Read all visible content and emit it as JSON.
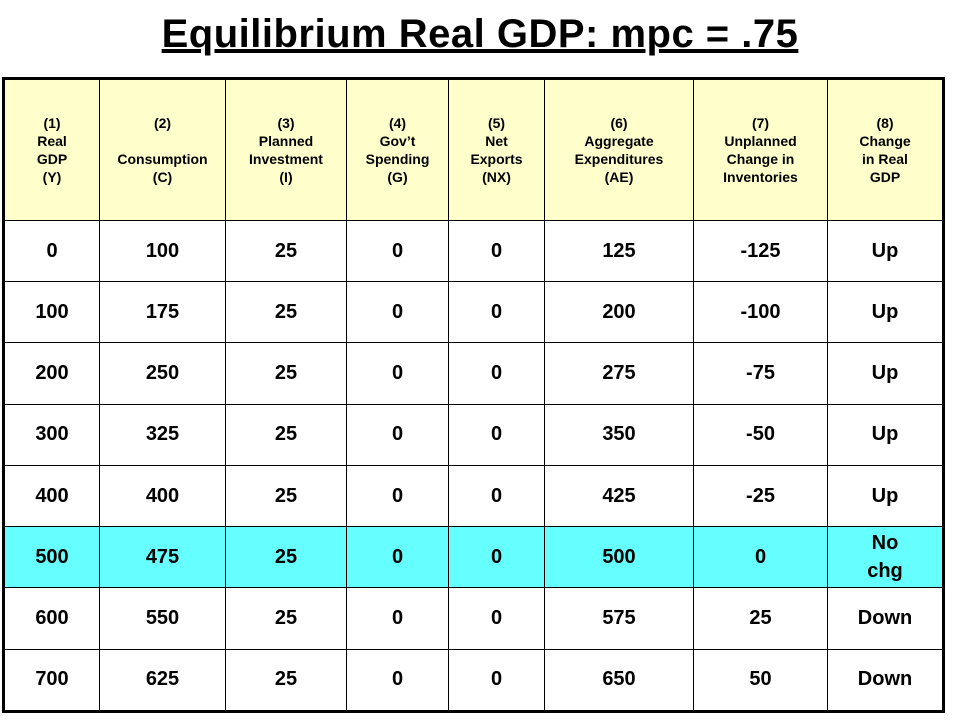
{
  "title": "Equilibrium Real GDP: mpc = .75",
  "columns": [
    [
      "(1)",
      "Real",
      "GDP",
      "(Y)"
    ],
    [
      "(2)",
      "",
      "Consumption",
      "(C)"
    ],
    [
      "(3)",
      "Planned",
      "Investment",
      "(I)"
    ],
    [
      "(4)",
      "Gov’t",
      "Spending",
      "(G)"
    ],
    [
      "(5)",
      "Net",
      "Exports",
      "(NX)"
    ],
    [
      "(6)",
      "Aggregate",
      "Expenditures",
      "(AE)"
    ],
    [
      "(7)",
      "Unplanned",
      "Change in",
      "Inventories"
    ],
    [
      "(8)",
      "Change",
      "in Real",
      "GDP"
    ]
  ],
  "rows": [
    [
      "0",
      "100",
      "25",
      "0",
      "0",
      "125",
      "-125",
      "Up"
    ],
    [
      "100",
      "175",
      "25",
      "0",
      "0",
      "200",
      "-100",
      "Up"
    ],
    [
      "200",
      "250",
      "25",
      "0",
      "0",
      "275",
      "-75",
      "Up"
    ],
    [
      "300",
      "325",
      "25",
      "0",
      "0",
      "350",
      "-50",
      "Up"
    ],
    [
      "400",
      "400",
      "25",
      "0",
      "0",
      "425",
      "-25",
      "Up"
    ],
    [
      "500",
      "475",
      "25",
      "0",
      "0",
      "500",
      "0",
      "No",
      "chg"
    ],
    [
      "600",
      "550",
      "25",
      "0",
      "0",
      "575",
      "25",
      "Down"
    ],
    [
      "700",
      "625",
      "25",
      "0",
      "0",
      "650",
      "50",
      "Down"
    ]
  ],
  "colors": {
    "header_bg": "#ffffcc",
    "equilibrium_bg": "#66ffff"
  }
}
